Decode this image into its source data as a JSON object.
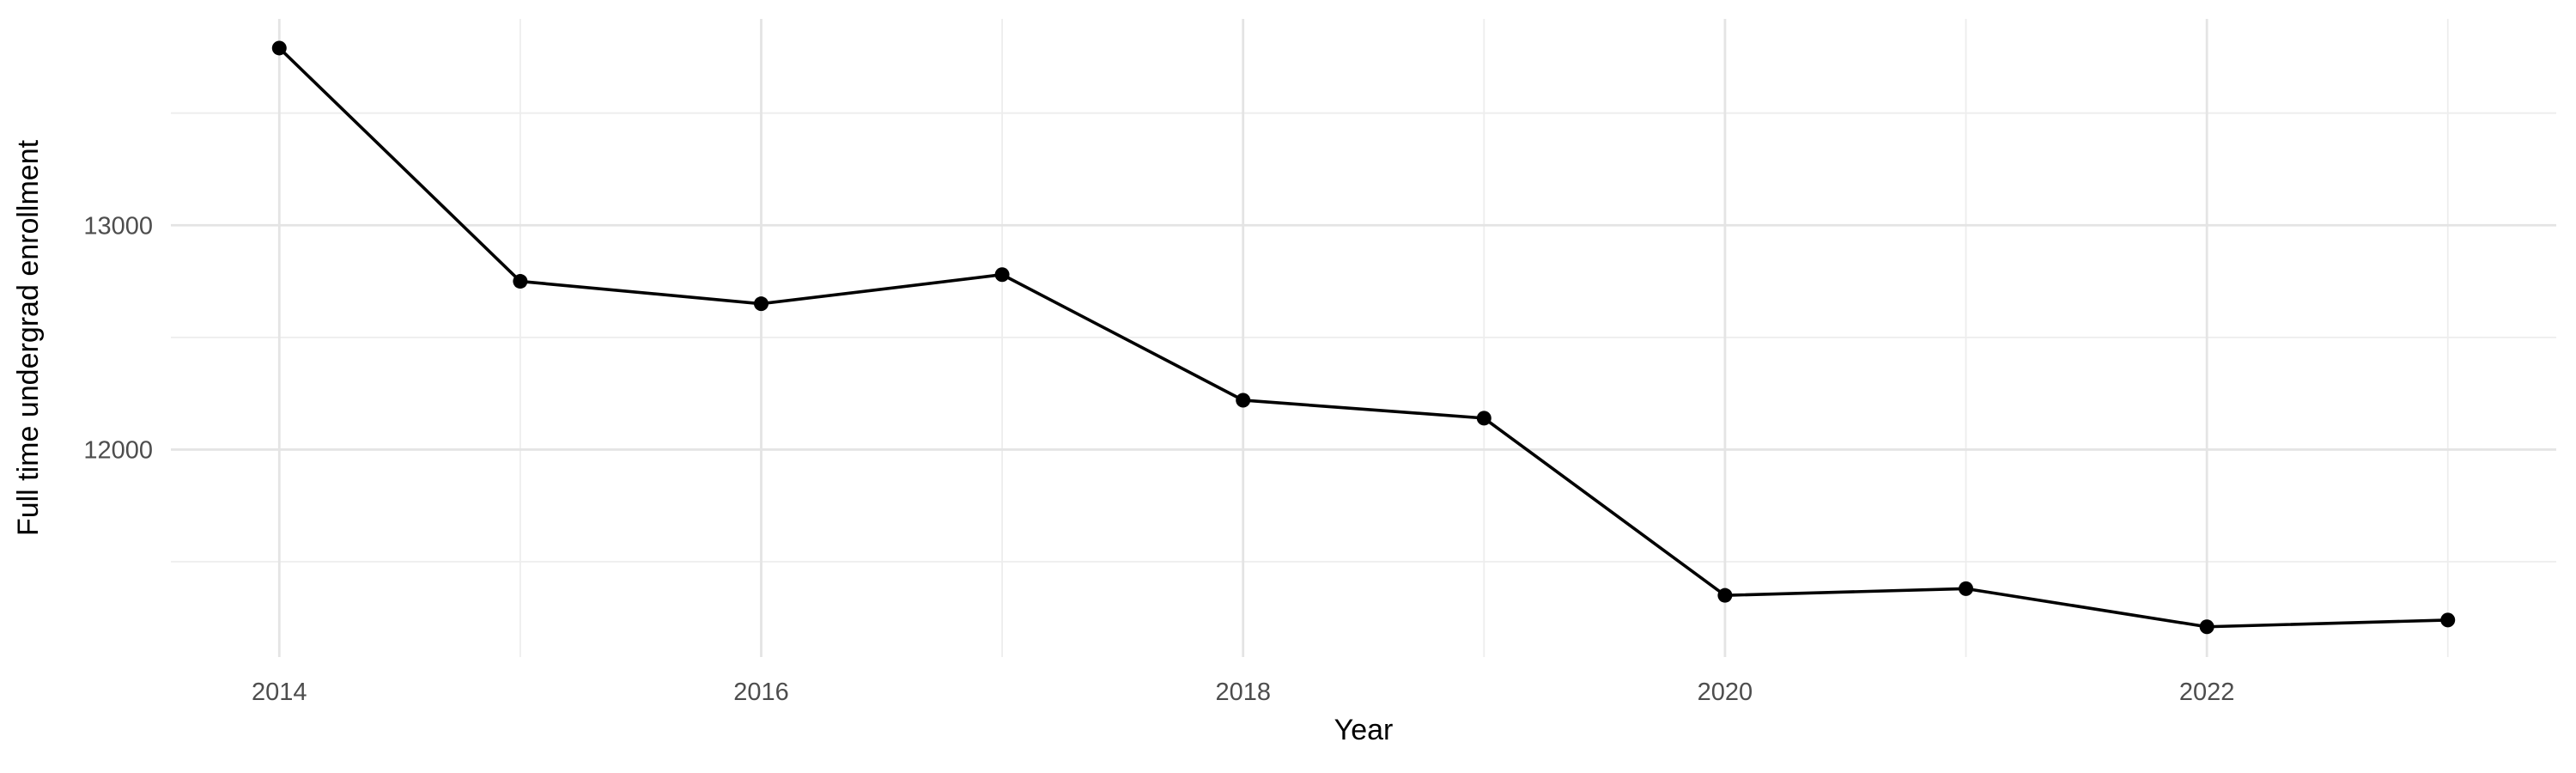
{
  "chart_data": {
    "type": "line",
    "title": "",
    "xlabel": "Year",
    "ylabel": "Full time undergrad enrollment",
    "x": [
      2014,
      2015,
      2016,
      2017,
      2018,
      2019,
      2020,
      2021,
      2022,
      2023
    ],
    "series": [
      {
        "name": "Full time undergrad enrollment",
        "values": [
          13790,
          12750,
          12650,
          12780,
          12220,
          12140,
          11350,
          11380,
          11210,
          11240
        ]
      }
    ],
    "x_major_ticks": [
      2014,
      2016,
      2018,
      2020,
      2022
    ],
    "x_minor_ticks": [
      2015,
      2017,
      2019,
      2021,
      2023
    ],
    "y_major_ticks": [
      12000,
      13000
    ],
    "y_minor_ticks": [
      11500,
      12500,
      13500
    ],
    "xlim": [
      2013.55,
      2023.45
    ],
    "ylim": [
      11075,
      13920
    ],
    "grid": "major+minor",
    "legend": "none",
    "style": {
      "background": "#FFFFFF",
      "line_color": "#000000",
      "point_color": "#000000",
      "grid_major_color": "#E4E4E4",
      "grid_minor_color": "#EDEDED",
      "tick_label_color": "#4D4D4D",
      "axis_title_color": "#000000"
    }
  }
}
